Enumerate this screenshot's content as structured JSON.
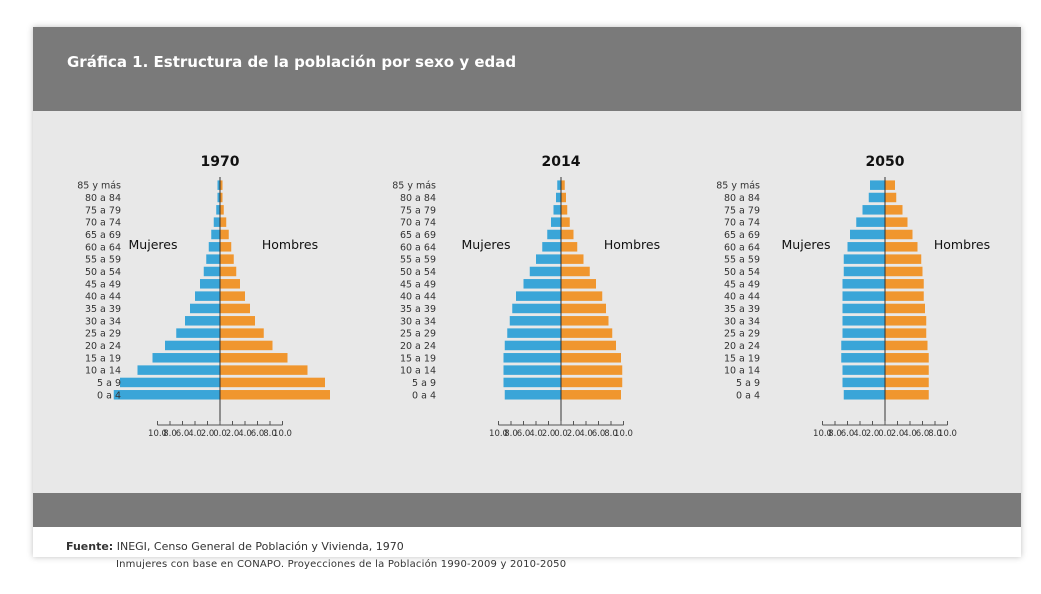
{
  "title": "Gráfica 1. Estructura de la población por sexo y edad",
  "source_label": "Fuente:",
  "source_line1": "INEGI, Censo General de Población y Vivienda, 1970",
  "source_line2": "Inmujeres con base en CONAPO. Proyecciones de la Población 1990-2009 y 2010-2050",
  "colors": {
    "female": "#3aa5d8",
    "male": "#f0962e",
    "axis": "#555555"
  },
  "chart_data": [
    {
      "type": "bar",
      "title": "1970",
      "female_label": "Mujeres",
      "male_label": "Hombres",
      "categories": [
        "85 y más",
        "80 a 84",
        "75 a 79",
        "70 a 74",
        "65 a 69",
        "60 a 64",
        "55 a 59",
        "50 a 54",
        "45 a 49",
        "40 a 44",
        "35 a 39",
        "30 a 34",
        "25 a 29",
        "20 a 24",
        "15 a 19",
        "10 a 14",
        "5 a 9",
        "0 a 4"
      ],
      "series": [
        {
          "name": "Mujeres",
          "values": [
            0.2,
            0.2,
            0.3,
            0.5,
            0.7,
            0.9,
            1.1,
            1.3,
            1.6,
            2.0,
            2.4,
            2.8,
            3.5,
            4.4,
            5.4,
            6.6,
            8.0,
            8.5
          ]
        },
        {
          "name": "Hombres",
          "values": [
            0.2,
            0.2,
            0.3,
            0.5,
            0.7,
            0.9,
            1.1,
            1.3,
            1.6,
            2.0,
            2.4,
            2.8,
            3.5,
            4.2,
            5.4,
            7.0,
            8.4,
            8.8
          ]
        }
      ],
      "xlim": [
        -10,
        10
      ],
      "xticks": [
        "10.0",
        "8.0",
        "6.0",
        "4.0",
        "2.0",
        "0.0",
        "2.0",
        "4.0",
        "6.0",
        "8.0",
        "10.0"
      ]
    },
    {
      "type": "bar",
      "title": "2014",
      "female_label": "Mujeres",
      "male_label": "Hombres",
      "categories": [
        "85 y más",
        "80 a 84",
        "75 a 79",
        "70 a 74",
        "65 a 69",
        "60 a 64",
        "55 a 59",
        "50 a 54",
        "45 a 49",
        "40 a 44",
        "35 a 39",
        "30 a 34",
        "25 a 29",
        "20 a 24",
        "15 a 19",
        "10 a 14",
        "5 a 9",
        "0 a 4"
      ],
      "series": [
        {
          "name": "Mujeres",
          "values": [
            0.3,
            0.4,
            0.6,
            0.8,
            1.1,
            1.5,
            2.0,
            2.5,
            3.0,
            3.6,
            3.9,
            4.1,
            4.3,
            4.5,
            4.6,
            4.6,
            4.6,
            4.5
          ]
        },
        {
          "name": "Hombres",
          "values": [
            0.3,
            0.4,
            0.5,
            0.7,
            1.0,
            1.3,
            1.8,
            2.3,
            2.8,
            3.3,
            3.6,
            3.8,
            4.1,
            4.4,
            4.8,
            4.9,
            4.9,
            4.8
          ]
        }
      ],
      "xlim": [
        -10,
        10
      ],
      "xticks": [
        "10.0",
        "8.0",
        "6.0",
        "4.0",
        "2.0",
        "0.0",
        "2.0",
        "4.0",
        "6.0",
        "8.0",
        "10.0"
      ]
    },
    {
      "type": "bar",
      "title": "2050",
      "female_label": "Mujeres",
      "male_label": "Hombres",
      "categories": [
        "85 y más",
        "80 a 84",
        "75 a 79",
        "70 a 74",
        "65 a 69",
        "60 a 64",
        "55 a 59",
        "50 a 54",
        "45 a 49",
        "40 a 44",
        "35 a 39",
        "30 a 34",
        "25 a 29",
        "20 a 24",
        "15 a 19",
        "10 a 14",
        "5 a 9",
        "0 a 4"
      ],
      "series": [
        {
          "name": "Mujeres",
          "values": [
            1.2,
            1.3,
            1.8,
            2.3,
            2.8,
            3.0,
            3.3,
            3.3,
            3.4,
            3.4,
            3.4,
            3.4,
            3.4,
            3.5,
            3.5,
            3.4,
            3.4,
            3.3
          ]
        },
        {
          "name": "Hombres",
          "values": [
            0.8,
            0.9,
            1.4,
            1.8,
            2.2,
            2.6,
            2.9,
            3.0,
            3.1,
            3.1,
            3.2,
            3.3,
            3.3,
            3.4,
            3.5,
            3.5,
            3.5,
            3.5
          ]
        }
      ],
      "xlim": [
        -10,
        10
      ],
      "xticks": [
        "10.0",
        "8.0",
        "6.0",
        "4.0",
        "2.0",
        "0.0",
        "2.0",
        "4.0",
        "6.0",
        "8.0",
        "10.0"
      ]
    }
  ]
}
